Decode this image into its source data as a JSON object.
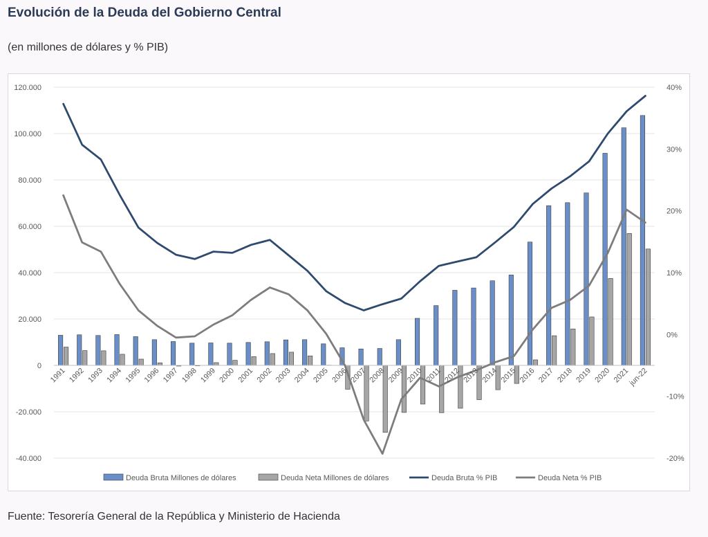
{
  "header": {
    "title": "Evolución de la Deuda del Gobierno Central",
    "subtitle": "(en millones de dólares y % PIB)"
  },
  "footer": {
    "source": "Fuente: Tesorería General de la República y Ministerio de Hacienda"
  },
  "colors": {
    "bruta_bar": "#6a8fc8",
    "neta_bar": "#a6a6a6",
    "bruta_line": "#2e4a6e",
    "neta_line": "#7f7c7f"
  },
  "chart_data": {
    "type": "bar",
    "categories": [
      "1991",
      "1992",
      "1993",
      "1994",
      "1995",
      "1996",
      "1997",
      "1998",
      "1999",
      "2000",
      "2001",
      "2002",
      "2003",
      "2004",
      "2005",
      "2006",
      "2007",
      "2008",
      "2009",
      "2010",
      "2011",
      "2012",
      "2013",
      "2014",
      "2015",
      "2016",
      "2017",
      "2018",
      "2019",
      "2020",
      "2021",
      "jun-22"
    ],
    "series": [
      {
        "name": "Deuda Bruta Millones de dólares",
        "kind": "bar",
        "axis": "left",
        "values": [
          13000,
          13200,
          12900,
          13300,
          12400,
          11100,
          10300,
          9600,
          9700,
          9600,
          9900,
          10200,
          11000,
          11100,
          9300,
          7600,
          7100,
          7300,
          11100,
          20300,
          25800,
          32400,
          33400,
          36500,
          39000,
          53200,
          68900,
          70200,
          74400,
          91500,
          102500,
          107800
        ]
      },
      {
        "name": "Deuda Neta Millones de dólares",
        "kind": "bar",
        "axis": "left",
        "values": [
          7900,
          6400,
          6300,
          4800,
          2700,
          1100,
          -300,
          -200,
          1200,
          2200,
          3800,
          5100,
          5700,
          4100,
          100,
          -10300,
          -24000,
          -28900,
          -20300,
          -16700,
          -20400,
          -18500,
          -14800,
          -10500,
          -7800,
          2400,
          12800,
          15700,
          20900,
          37500,
          56900,
          50200
        ]
      },
      {
        "name": "Deuda Bruta % PIB",
        "kind": "line",
        "axis": "right",
        "values": [
          37.3,
          30.7,
          28.3,
          22.6,
          17.3,
          14.8,
          12.9,
          12.2,
          13.4,
          13.2,
          14.5,
          15.3,
          12.8,
          10.3,
          7.0,
          5.1,
          3.9,
          4.9,
          5.8,
          8.6,
          11.1,
          11.8,
          12.5,
          14.9,
          17.4,
          21.1,
          23.6,
          25.6,
          28.0,
          32.5,
          36.1,
          38.6
        ]
      },
      {
        "name": "Deuda Neta % PIB",
        "kind": "line",
        "axis": "right",
        "values": [
          22.5,
          14.9,
          13.4,
          8.2,
          3.9,
          1.4,
          -0.5,
          -0.3,
          1.6,
          3.1,
          5.6,
          7.6,
          6.5,
          3.9,
          0.1,
          -5.0,
          -13.8,
          -19.3,
          -10.5,
          -7.0,
          -8.4,
          -6.9,
          -5.8,
          -4.5,
          -3.5,
          0.8,
          4.3,
          5.6,
          7.9,
          13.2,
          20.2,
          18.1
        ]
      }
    ],
    "ylim_left": [
      -40000,
      120000
    ],
    "yticks_left": [
      -40000,
      -20000,
      0,
      20000,
      40000,
      60000,
      80000,
      100000,
      120000
    ],
    "yticks_left_labels": [
      "-40.000",
      "-20.000",
      "0",
      "20.000",
      "40.000",
      "60.000",
      "80.000",
      "100.000",
      "120.000"
    ],
    "ylim_right": [
      -20,
      40
    ],
    "yticks_right": [
      -20,
      -10,
      0,
      10,
      20,
      30,
      40
    ],
    "yticks_right_labels": [
      "-20%",
      "-10%",
      "0%",
      "10%",
      "20%",
      "30%",
      "40%"
    ],
    "grid": true,
    "legend_position": "bottom"
  }
}
